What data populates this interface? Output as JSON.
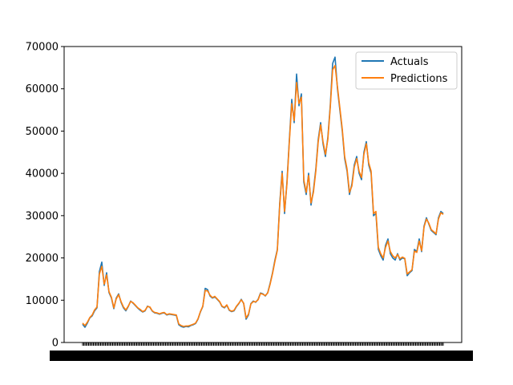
{
  "chart_data": {
    "type": "line",
    "title": "",
    "xlabel": "",
    "ylabel": "",
    "ylim": [
      0,
      70000
    ],
    "yticks": [
      0,
      10000,
      20000,
      30000,
      40000,
      50000,
      60000,
      70000
    ],
    "ytick_labels": [
      "0",
      "10000",
      "20000",
      "30000",
      "40000",
      "50000",
      "60000",
      "70000"
    ],
    "x_tick_labels_note": "dense overlapping date tick labels (illegible)",
    "legend": {
      "placement": "upper right",
      "entries": [
        "Actuals",
        "Predictions"
      ]
    },
    "grid": false,
    "colors": {
      "Actuals": "#1f77b4",
      "Predictions": "#ff7f0e"
    },
    "x": [
      0,
      4,
      8,
      12,
      16,
      20,
      24,
      28,
      30,
      34,
      38,
      42,
      46,
      50,
      54,
      58,
      62,
      66,
      70,
      74,
      78,
      82,
      86,
      90,
      94,
      98,
      102,
      106,
      110,
      114,
      118,
      122,
      126,
      130,
      134,
      138,
      142,
      146,
      150,
      154,
      158,
      162,
      166,
      170,
      174,
      178,
      182,
      186,
      190,
      194,
      198,
      202,
      206,
      210,
      214,
      218,
      222,
      226,
      230,
      234,
      238,
      242,
      246,
      250,
      254,
      258,
      262,
      266,
      270,
      274,
      278,
      282,
      286,
      290,
      294,
      298,
      302,
      306,
      310,
      314,
      318,
      322,
      326,
      330,
      334,
      338,
      342,
      346,
      350,
      354,
      358,
      362,
      366,
      370,
      374,
      378,
      382,
      386,
      390,
      394,
      398,
      402,
      406,
      410,
      414,
      418,
      422,
      426,
      430,
      434,
      438,
      442,
      446,
      450
    ],
    "series": [
      {
        "name": "Actuals",
        "values": [
          4300,
          3600,
          4600,
          5800,
          6300,
          7500,
          8200,
          16800,
          19000,
          13500,
          16500,
          11800,
          10500,
          8000,
          10500,
          11500,
          9500,
          8200,
          7500,
          8500,
          9800,
          9300,
          8700,
          8100,
          7600,
          7200,
          7500,
          8600,
          8300,
          7400,
          7000,
          6900,
          6700,
          6900,
          7000,
          6500,
          6700,
          6600,
          6500,
          6400,
          4200,
          3800,
          3600,
          3800,
          3700,
          4000,
          4200,
          4500,
          5500,
          7200,
          8500,
          12800,
          12500,
          11000,
          10500,
          10800,
          10200,
          9600,
          8500,
          8200,
          8800,
          7600,
          7300,
          7500,
          8500,
          9200,
          10200,
          9200,
          5500,
          6500,
          9200,
          9800,
          9500,
          10200,
          11700,
          11500,
          11000,
          11800,
          14000,
          16500,
          19500,
          22000,
          33000,
          40500,
          30500,
          38000,
          48000,
          57500,
          52000,
          63500,
          56000,
          58800,
          38000,
          35000,
          40000,
          32500,
          36000,
          41000,
          48000,
          52000,
          47000,
          44000,
          48500,
          56000,
          66000,
          67500,
          60000,
          55000,
          50000,
          43500,
          40500,
          35000,
          37500,
          42000
        ],
        "extra_values": [
          44000,
          40000,
          38500,
          45000,
          47500,
          42000,
          40000,
          30000,
          30500,
          22000,
          20500,
          19500,
          23000,
          24500,
          21000,
          20000,
          19500,
          21000,
          19500,
          20000,
          19800,
          15800,
          16500,
          17000,
          22000,
          21500,
          24500,
          21500,
          27500,
          29500,
          28000,
          26500,
          26000,
          25500,
          29500,
          31000,
          30500
        ]
      },
      {
        "name": "Predictions",
        "values": [
          4600,
          4000,
          4800,
          5900,
          6500,
          7700,
          8400,
          16200,
          18000,
          13800,
          16000,
          12000,
          10700,
          8200,
          10300,
          11300,
          9700,
          8400,
          7700,
          8600,
          9700,
          9400,
          8800,
          8200,
          7800,
          7300,
          7600,
          8500,
          8400,
          7500,
          7100,
          7000,
          6800,
          7000,
          7100,
          6600,
          6800,
          6700,
          6600,
          6500,
          4400,
          4000,
          3800,
          3900,
          3900,
          4100,
          4300,
          4600,
          5600,
          7300,
          8600,
          12300,
          12200,
          11200,
          10600,
          10900,
          10300,
          9700,
          8600,
          8300,
          8900,
          7700,
          7400,
          7600,
          8600,
          9300,
          10100,
          9300,
          5800,
          6700,
          9100,
          9700,
          9600,
          10100,
          11600,
          11400,
          11100,
          11700,
          13800,
          16300,
          19200,
          21800,
          32500,
          40000,
          31000,
          37500,
          47500,
          56500,
          52500,
          61500,
          56500,
          58000,
          38500,
          35500,
          39500,
          33000,
          35500,
          40500,
          47500,
          51500,
          47500,
          44500,
          48000,
          55500,
          64500,
          65500,
          60500,
          55500,
          50500,
          44000,
          41000,
          35500,
          37000,
          41500
        ],
        "extra_values": [
          43500,
          40500,
          39000,
          44500,
          47000,
          42500,
          40500,
          30500,
          31000,
          22500,
          21000,
          20000,
          22500,
          24000,
          21500,
          20500,
          20000,
          20800,
          19800,
          20200,
          19900,
          16200,
          16700,
          17200,
          21600,
          21300,
          24000,
          21700,
          27300,
          29200,
          28200,
          26700,
          26200,
          25700,
          29200,
          30700,
          30300
        ]
      }
    ]
  }
}
